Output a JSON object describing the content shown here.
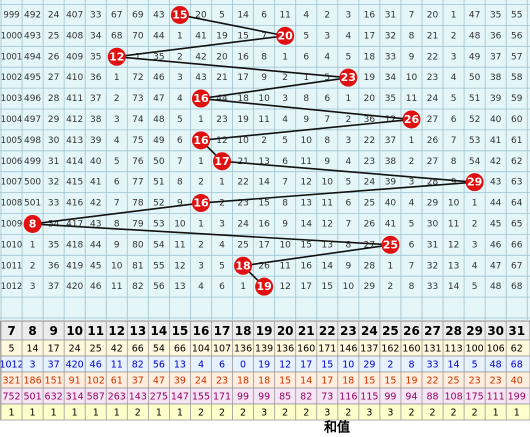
{
  "trend": {
    "rows": [
      {
        "period": "999",
        "sum": 15,
        "cells": [
          492,
          24,
          407,
          33,
          67,
          69,
          43,
          null,
          20,
          5,
          14,
          6,
          11,
          4,
          2,
          3,
          16,
          31,
          7,
          20,
          1,
          47,
          35,
          55
        ]
      },
      {
        "period": "1000",
        "sum": 20,
        "cells": [
          493,
          25,
          408,
          34,
          68,
          70,
          44,
          1,
          41,
          19,
          15,
          7,
          null,
          5,
          3,
          4,
          17,
          32,
          8,
          21,
          2,
          48,
          36,
          56
        ]
      },
      {
        "period": "1001",
        "sum": 12,
        "cells": [
          494,
          26,
          409,
          35,
          null,
          1,
          35,
          2,
          42,
          20,
          16,
          8,
          1,
          6,
          4,
          5,
          18,
          33,
          9,
          22,
          3,
          49,
          37,
          57
        ]
      },
      {
        "period": "1002",
        "sum": 23,
        "cells": [
          495,
          27,
          410,
          36,
          1,
          72,
          46,
          3,
          43,
          21,
          17,
          9,
          2,
          1,
          5,
          null,
          19,
          34,
          10,
          23,
          4,
          50,
          38,
          58
        ]
      },
      {
        "period": "1003",
        "sum": 16,
        "cells": [
          496,
          28,
          411,
          37,
          2,
          73,
          47,
          4,
          null,
          44,
          18,
          10,
          3,
          8,
          6,
          1,
          20,
          35,
          11,
          24,
          5,
          51,
          39,
          59
        ]
      },
      {
        "period": "1004",
        "sum": 26,
        "cells": [
          497,
          29,
          412,
          38,
          3,
          74,
          48,
          5,
          1,
          23,
          19,
          11,
          4,
          9,
          7,
          2,
          36,
          12,
          null,
          27,
          6,
          52,
          40,
          60
        ]
      },
      {
        "period": "1005",
        "sum": 16,
        "cells": [
          498,
          30,
          413,
          39,
          4,
          75,
          49,
          6,
          null,
          12,
          10,
          2,
          5,
          10,
          8,
          3,
          22,
          37,
          1,
          26,
          7,
          53,
          41,
          61
        ]
      },
      {
        "period": "1006",
        "sum": 17,
        "cells": [
          499,
          31,
          414,
          40,
          5,
          76,
          50,
          7,
          1,
          null,
          21,
          13,
          6,
          11,
          9,
          4,
          23,
          38,
          2,
          27,
          8,
          54,
          42,
          62
        ]
      },
      {
        "period": "1007",
        "sum": 29,
        "cells": [
          500,
          32,
          415,
          41,
          6,
          77,
          51,
          8,
          2,
          1,
          22,
          14,
          7,
          12,
          10,
          5,
          24,
          39,
          3,
          28,
          9,
          null,
          43,
          63
        ]
      },
      {
        "period": "1008",
        "sum": 16,
        "cells": [
          501,
          33,
          416,
          42,
          7,
          78,
          52,
          9,
          null,
          2,
          23,
          15,
          8,
          13,
          11,
          6,
          25,
          40,
          4,
          29,
          10,
          1,
          44,
          64
        ]
      },
      {
        "period": "1009",
        "sum": 8,
        "cells": [
          null,
          34,
          417,
          43,
          8,
          79,
          53,
          10,
          1,
          3,
          24,
          16,
          9,
          14,
          12,
          7,
          26,
          41,
          5,
          30,
          11,
          2,
          45,
          65
        ]
      },
      {
        "period": "1010",
        "sum": 25,
        "cells": [
          1,
          35,
          418,
          44,
          9,
          80,
          54,
          11,
          2,
          4,
          25,
          17,
          10,
          15,
          13,
          8,
          27,
          null,
          6,
          31,
          12,
          3,
          46,
          66
        ]
      },
      {
        "period": "1011",
        "sum": 18,
        "cells": [
          2,
          36,
          419,
          45,
          10,
          81,
          55,
          12,
          3,
          5,
          null,
          26,
          11,
          16,
          14,
          9,
          28,
          1,
          7,
          32,
          13,
          4,
          47,
          67
        ]
      },
      {
        "period": "1012",
        "sum": 19,
        "cells": [
          3,
          37,
          420,
          46,
          11,
          82,
          56,
          13,
          4,
          6,
          1,
          null,
          12,
          17,
          15,
          10,
          29,
          2,
          8,
          33,
          14,
          5,
          48,
          68
        ]
      }
    ]
  },
  "bottom": {
    "header": [
      7,
      8,
      9,
      10,
      11,
      12,
      13,
      14,
      15,
      16,
      17,
      18,
      19,
      20,
      21,
      22,
      23,
      24,
      25,
      26,
      27,
      28,
      29,
      30,
      31
    ],
    "stats": [
      {
        "bg": "#fff8dc",
        "color": "#000000",
        "values": [
          5,
          14,
          17,
          24,
          25,
          42,
          66,
          54,
          66,
          104,
          107,
          136,
          139,
          136,
          160,
          171,
          146,
          137,
          162,
          160,
          131,
          113,
          100,
          106,
          62
        ]
      },
      {
        "bg": "#e6f2ff",
        "color": "#0000cc",
        "values": [
          1012,
          3,
          37,
          420,
          46,
          11,
          82,
          56,
          13,
          4,
          6,
          0,
          19,
          12,
          17,
          15,
          10,
          29,
          2,
          8,
          33,
          14,
          5,
          48,
          68
        ]
      },
      {
        "bg": "#ffeedd",
        "color": "#cc3300",
        "values": [
          321,
          186,
          151,
          91,
          102,
          61,
          37,
          47,
          39,
          24,
          23,
          18,
          18,
          15,
          14,
          17,
          18,
          15,
          15,
          19,
          22,
          25,
          23,
          23,
          40
        ]
      },
      {
        "bg": "#f5e6f5",
        "color": "#990066",
        "values": [
          752,
          501,
          632,
          314,
          587,
          263,
          143,
          275,
          147,
          155,
          171,
          99,
          99,
          85,
          82,
          73,
          116,
          115,
          99,
          94,
          88,
          108,
          175,
          111,
          199
        ]
      },
      {
        "bg": "#ffffcc",
        "color": "#000000",
        "values": [
          1,
          1,
          1,
          1,
          1,
          1,
          2,
          1,
          1,
          2,
          2,
          2,
          3,
          2,
          2,
          3,
          2,
          3,
          3,
          2,
          2,
          2,
          2,
          1,
          1
        ]
      }
    ],
    "footer": "和值"
  }
}
